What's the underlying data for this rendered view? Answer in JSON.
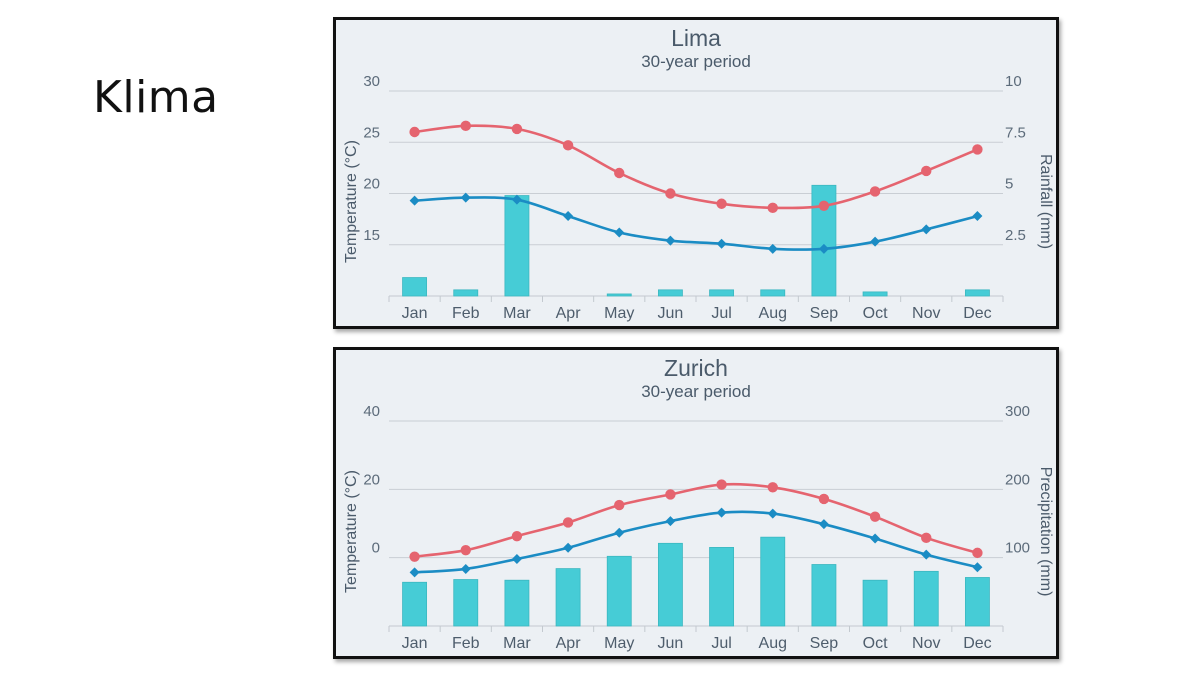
{
  "slide": {
    "title": "Klima"
  },
  "colors": {
    "max_temp": "#e5646f",
    "min_temp": "#1b8cc4",
    "bars": "#46ccd6",
    "background": "#ecf0f4",
    "grid": "#c9ced4"
  },
  "chart_data": [
    {
      "type": "bar",
      "title": "Lima",
      "subtitle": "30-year period",
      "categories": [
        "Jan",
        "Feb",
        "Mar",
        "Apr",
        "May",
        "Jun",
        "Jul",
        "Aug",
        "Sep",
        "Oct",
        "Nov",
        "Dec"
      ],
      "ylabel_left": "Temperature (°C)",
      "ylabel_right": "Rainfall (mm)",
      "left_ticks": [
        15,
        20,
        25,
        30
      ],
      "left_tick_labels": [
        "15",
        "20",
        "25",
        "30"
      ],
      "right_ticks": [
        2.5,
        5,
        7.5,
        10
      ],
      "right_tick_labels": [
        "2.5",
        "5",
        "7.5",
        "10"
      ],
      "left_range": [
        10,
        30
      ],
      "right_range": [
        0,
        10
      ],
      "grid": true,
      "series": [
        {
          "name": "",
          "kind": "bar",
          "axis": "right",
          "values": [
            0.9,
            0.3,
            4.9,
            0,
            0.1,
            0.3,
            0.3,
            0.3,
            5.4,
            0.2,
            0,
            0.3
          ]
        },
        {
          "name": "",
          "kind": "line",
          "axis": "left",
          "marker": "circle",
          "values": [
            26,
            26.6,
            26.3,
            24.7,
            22,
            20,
            19,
            18.6,
            18.8,
            20.2,
            22.2,
            24.3
          ]
        },
        {
          "name": "",
          "kind": "line",
          "axis": "left",
          "marker": "diamond",
          "values": [
            19.3,
            19.6,
            19.4,
            17.8,
            16.2,
            15.4,
            15.1,
            14.6,
            14.6,
            15.3,
            16.5,
            17.8
          ]
        }
      ]
    },
    {
      "type": "bar",
      "title": "Zurich",
      "subtitle": "30-year period",
      "categories": [
        "Jan",
        "Feb",
        "Mar",
        "Apr",
        "May",
        "Jun",
        "Jul",
        "Aug",
        "Sep",
        "Oct",
        "Nov",
        "Dec"
      ],
      "ylabel_left": "Temperature (°C)",
      "ylabel_right": "Precipitation (mm)",
      "left_ticks": [
        0,
        20,
        40
      ],
      "left_tick_labels": [
        "0",
        "20",
        "40"
      ],
      "right_ticks": [
        100,
        200,
        300
      ],
      "right_tick_labels": [
        "100",
        "200",
        "300"
      ],
      "left_range": [
        -20,
        40
      ],
      "right_range": [
        0,
        300
      ],
      "grid": true,
      "series": [
        {
          "name": "",
          "kind": "bar",
          "axis": "right",
          "values": [
            64,
            68,
            67,
            84,
            102,
            121,
            115,
            130,
            90,
            67,
            80,
            71
          ]
        },
        {
          "name": "",
          "kind": "line",
          "axis": "left",
          "marker": "circle",
          "values": [
            0.3,
            2.2,
            6.3,
            10.3,
            15.4,
            18.5,
            21.4,
            20.6,
            17.2,
            12,
            5.8,
            1.4
          ]
        },
        {
          "name": "",
          "kind": "line",
          "axis": "left",
          "marker": "diamond",
          "values": [
            -4.3,
            -3.3,
            -0.4,
            2.9,
            7.3,
            10.7,
            13.2,
            12.9,
            9.8,
            5.6,
            0.9,
            -2.8
          ]
        }
      ]
    }
  ]
}
